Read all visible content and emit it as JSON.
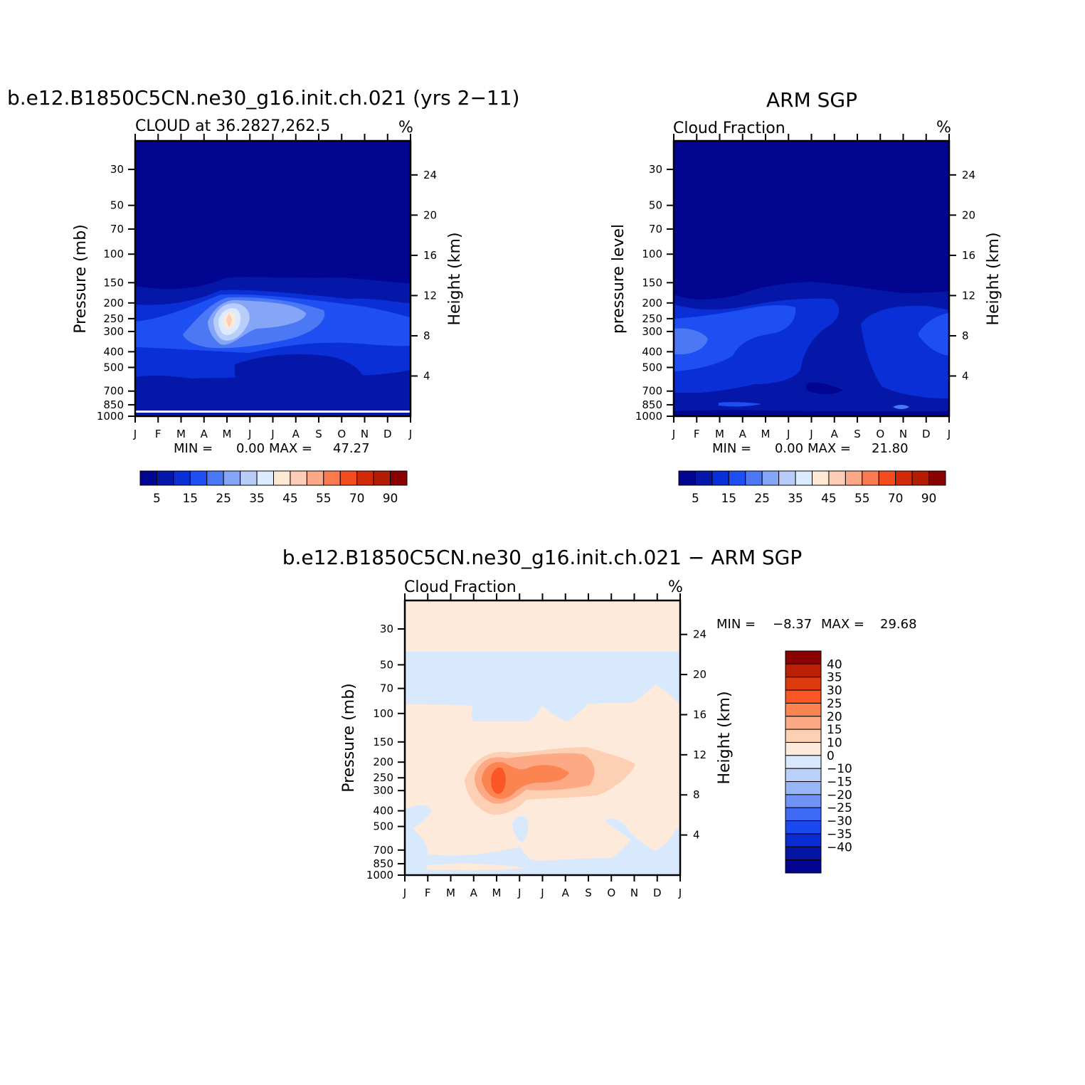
{
  "colors": {
    "seq": [
      "#02058f",
      "#0417a8",
      "#0a2fd6",
      "#1e4ff2",
      "#4d78f5",
      "#85a5f7",
      "#b8cdfa",
      "#dcebfd",
      "#fde9d4",
      "#fdcdb5",
      "#fca98a",
      "#fb7a4f",
      "#f44b1f",
      "#d22a08",
      "#b41d04",
      "#8a0303"
    ],
    "diff": [
      "#02058f",
      "#0414a5",
      "#0a2cd2",
      "#1c48ef",
      "#3f6af3",
      "#6f93f6",
      "#98b5f8",
      "#bad0fb",
      "#d8e9fd",
      "#fdeada",
      "#fdd0b4",
      "#fda986",
      "#fb8450",
      "#fb5625",
      "#dd3a0d",
      "#b92005",
      "#8a0303"
    ]
  },
  "chart_data": [
    {
      "type": "heatmap",
      "title": "b.e12.B1850C5CN.ne30_g16.init.ch.021 (yrs 2−11)",
      "subtitle_left": "CLOUD at 36.2827,262.5",
      "subtitle_right": "%",
      "ylabel": "Pressure (mb)",
      "y2label": "Height (km)",
      "x_ticks": [
        "J",
        "F",
        "M",
        "A",
        "M",
        "J",
        "J",
        "A",
        "S",
        "O",
        "N",
        "D",
        "J"
      ],
      "y_ticks": [
        "30",
        "50",
        "70",
        "100",
        "150",
        "200",
        "250",
        "300",
        "400",
        "500",
        "700",
        "850",
        "1000"
      ],
      "y2_ticks": [
        "24",
        "20",
        "16",
        "12",
        "8",
        "4"
      ],
      "stats": {
        "min_label": "MIN =",
        "min": "0.00",
        "max_label": "MAX =",
        "max": "47.27"
      },
      "colorbar_labels": [
        "5",
        "15",
        "25",
        "35",
        "45",
        "55",
        "70",
        "90"
      ],
      "max_value": 47.27,
      "max_location": {
        "month": "M",
        "pressure_mb": 275
      }
    },
    {
      "type": "heatmap",
      "title": "ARM SGP",
      "subtitle_left": "Cloud Fraction",
      "subtitle_right": "%",
      "ylabel": "pressure level",
      "y2label": "Height (km)",
      "x_ticks": [
        "J",
        "F",
        "M",
        "A",
        "M",
        "J",
        "J",
        "A",
        "S",
        "O",
        "N",
        "D",
        "J"
      ],
      "y_ticks": [
        "30",
        "50",
        "70",
        "100",
        "150",
        "200",
        "250",
        "300",
        "400",
        "500",
        "700",
        "850",
        "1000"
      ],
      "y2_ticks": [
        "24",
        "20",
        "16",
        "12",
        "8",
        "4"
      ],
      "stats": {
        "min_label": "MIN =",
        "min": "0.00",
        "max_label": "MAX =",
        "max": "21.80"
      },
      "colorbar_labels": [
        "5",
        "15",
        "25",
        "35",
        "45",
        "55",
        "70",
        "90"
      ],
      "max_value": 21.8
    },
    {
      "type": "heatmap",
      "title": "b.e12.B1850C5CN.ne30_g16.init.ch.021 − ARM SGP",
      "subtitle_left": "Cloud Fraction",
      "subtitle_right": "%",
      "ylabel": "Pressure (mb)",
      "y2label": "Height (km)",
      "x_ticks": [
        "J",
        "F",
        "M",
        "A",
        "M",
        "J",
        "J",
        "A",
        "S",
        "O",
        "N",
        "D",
        "J"
      ],
      "y_ticks": [
        "30",
        "50",
        "70",
        "100",
        "150",
        "200",
        "250",
        "300",
        "400",
        "500",
        "700",
        "850",
        "1000"
      ],
      "y2_ticks": [
        "24",
        "20",
        "16",
        "12",
        "8",
        "4"
      ],
      "stats": {
        "min_label": "MIN =",
        "min": "−8.37",
        "max_label": "MAX =",
        "max": "29.68"
      },
      "colorbar_labels": [
        "40",
        "35",
        "30",
        "25",
        "20",
        "15",
        "10",
        "0",
        "−10",
        "−15",
        "−20",
        "−25",
        "−30",
        "−35",
        "−40"
      ],
      "min_value": -8.37,
      "max_value": 29.68,
      "max_location": {
        "month": "M",
        "pressure_mb": 275
      }
    }
  ]
}
